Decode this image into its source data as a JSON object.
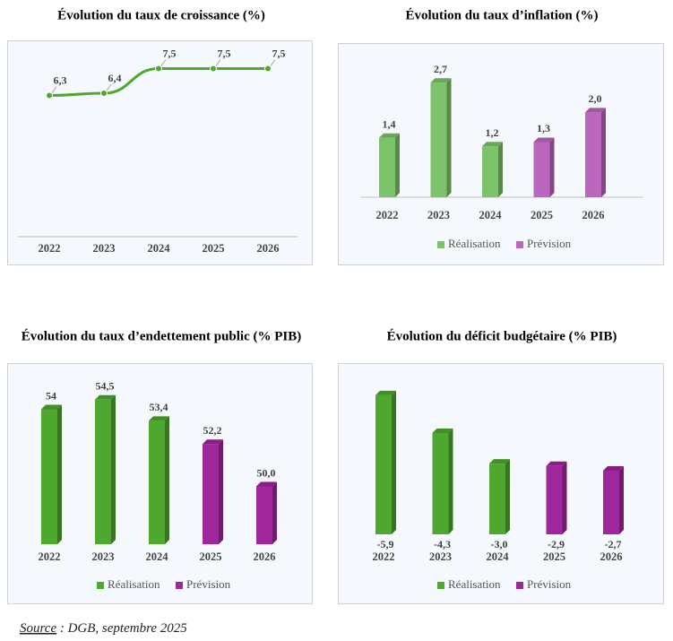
{
  "chart_data": [
    {
      "type": "line",
      "title": "Évolution du taux de croissance (%)",
      "categories": [
        "2022",
        "2023",
        "2024",
        "2025",
        "2026"
      ],
      "values": [
        6.3,
        6.4,
        7.5,
        7.5,
        7.5
      ],
      "value_labels": [
        "6,3",
        "6,4",
        "7,5",
        "7,5",
        "7,5"
      ],
      "color": "#4ea72e",
      "ylim": [
        0,
        8
      ]
    },
    {
      "type": "bar",
      "title": "Évolution du taux d’inflation (%)",
      "categories": [
        "2022",
        "2023",
        "2024",
        "2025",
        "2026"
      ],
      "series": [
        {
          "name": "Réalisation",
          "color": "#7cc36a",
          "values": [
            1.4,
            2.7,
            1.2,
            null,
            null
          ],
          "value_labels": [
            "1,4",
            "2,7",
            "1,2",
            null,
            null
          ]
        },
        {
          "name": "Prévision",
          "color": "#bb67bd",
          "values": [
            null,
            null,
            null,
            1.3,
            2.0
          ],
          "value_labels": [
            null,
            null,
            null,
            "1,3",
            "2,0"
          ]
        }
      ],
      "ylim": [
        0,
        3
      ]
    },
    {
      "type": "bar",
      "title": "Évolution du taux d’endettement public (% PIB)",
      "categories": [
        "2022",
        "2023",
        "2024",
        "2025",
        "2026"
      ],
      "series": [
        {
          "name": "Réalisation",
          "color": "#4ea72e",
          "values": [
            54,
            54.5,
            53.4,
            null,
            null
          ],
          "value_labels": [
            "54",
            "54,5",
            "53,4",
            null,
            null
          ]
        },
        {
          "name": "Prévision",
          "color": "#a0269b",
          "values": [
            null,
            null,
            null,
            52.2,
            50.0
          ],
          "value_labels": [
            null,
            null,
            null,
            "52,2",
            "50,0"
          ]
        }
      ],
      "ylim": [
        47,
        55
      ]
    },
    {
      "type": "bar",
      "title": "Évolution du déficit budgétaire (% PIB)",
      "categories": [
        "2022",
        "2023",
        "2024",
        "2025",
        "2026"
      ],
      "series": [
        {
          "name": "Réalisation",
          "color": "#4ea72e",
          "values": [
            -5.9,
            -4.3,
            -3.0,
            null,
            null
          ],
          "value_labels": [
            "-5,9",
            "-4,3",
            "-3,0",
            null,
            null
          ]
        },
        {
          "name": "Prévision",
          "color": "#a0269b",
          "values": [
            null,
            null,
            null,
            -2.9,
            -2.7
          ],
          "value_labels": [
            null,
            null,
            null,
            "-2,9",
            "-2,7"
          ]
        }
      ],
      "ylim": [
        -6.2,
        0
      ]
    }
  ],
  "source": {
    "label": "Source",
    "text": " : DGB, septembre 2025"
  }
}
